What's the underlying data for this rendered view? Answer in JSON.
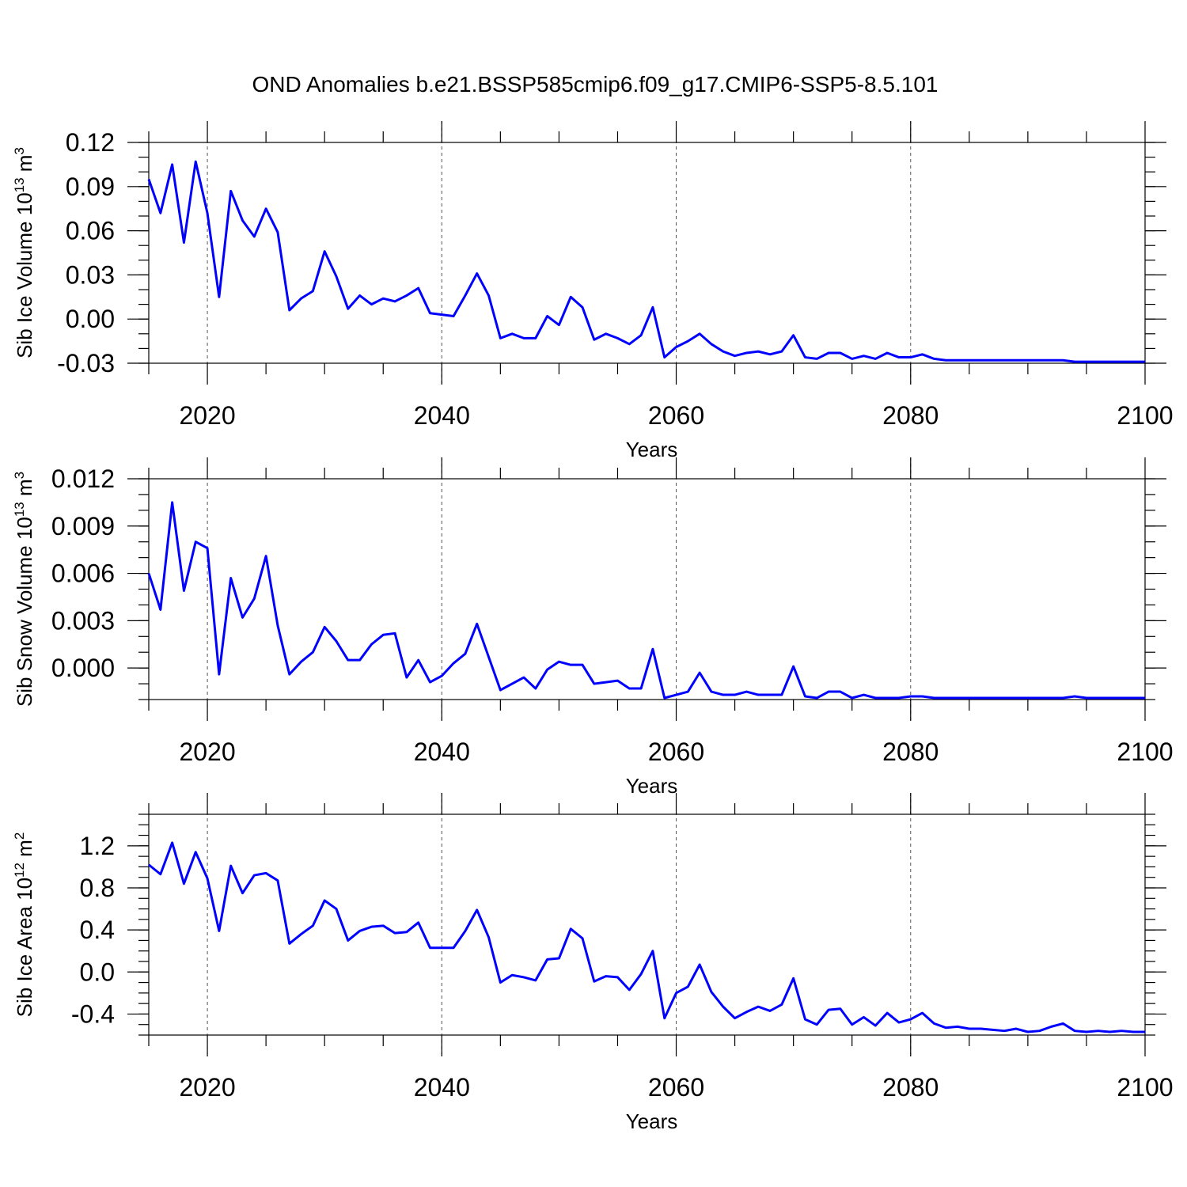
{
  "title": "OND Anomalies b.e21.BSSP585cmip6.f09_g17.CMIP6-SSP5-8.5.101",
  "chart_data": [
    {
      "type": "line",
      "ylabel": "Sib Ice Volume 10",
      "ylabel_exp": "13",
      "ylabel_unit": " m",
      "ylabel_unit_exp": "3",
      "xlabel": "Years",
      "xlim": [
        2015,
        2100
      ],
      "ylim": [
        -0.03,
        0.12
      ],
      "xticks": [
        2020,
        2040,
        2060,
        2080,
        2100
      ],
      "yticks": [
        -0.03,
        0.0,
        0.03,
        0.06,
        0.09,
        0.12
      ],
      "ytick_labels": [
        "-0.03",
        "0.00",
        "0.03",
        "0.06",
        "0.09",
        "0.12"
      ],
      "ytick_minor_step": 0.01,
      "grid_x": [
        2020,
        2040,
        2060,
        2080
      ],
      "color": "#0000ff",
      "x_start": 2015,
      "values": [
        0.095,
        0.072,
        0.105,
        0.052,
        0.107,
        0.072,
        0.015,
        0.087,
        0.067,
        0.056,
        0.075,
        0.059,
        0.006,
        0.014,
        0.019,
        0.046,
        0.029,
        0.007,
        0.016,
        0.01,
        0.014,
        0.012,
        0.016,
        0.021,
        0.004,
        0.003,
        0.002,
        0.016,
        0.031,
        0.016,
        -0.013,
        -0.01,
        -0.013,
        -0.013,
        0.002,
        -0.004,
        0.015,
        0.008,
        -0.014,
        -0.01,
        -0.013,
        -0.017,
        -0.011,
        0.008,
        -0.026,
        -0.019,
        -0.015,
        -0.01,
        -0.017,
        -0.022,
        -0.025,
        -0.023,
        -0.022,
        -0.024,
        -0.022,
        -0.011,
        -0.026,
        -0.027,
        -0.023,
        -0.023,
        -0.027,
        -0.025,
        -0.027,
        -0.023,
        -0.026,
        -0.026,
        -0.024,
        -0.027,
        -0.028,
        -0.028,
        -0.028,
        -0.028,
        -0.028,
        -0.028,
        -0.028,
        -0.028,
        -0.028,
        -0.028,
        -0.028,
        -0.029,
        -0.029,
        -0.029,
        -0.029,
        -0.029,
        -0.029,
        -0.029
      ]
    },
    {
      "type": "line",
      "ylabel": "Sib Snow Volume 10",
      "ylabel_exp": "13",
      "ylabel_unit": " m",
      "ylabel_unit_exp": "3",
      "xlabel": "Years",
      "xlim": [
        2015,
        2100
      ],
      "ylim": [
        -0.002,
        0.012
      ],
      "xticks": [
        2020,
        2040,
        2060,
        2080,
        2100
      ],
      "yticks": [
        0.0,
        0.003,
        0.006,
        0.009,
        0.012
      ],
      "ytick_labels": [
        "0.000",
        "0.003",
        "0.006",
        "0.009",
        "0.012"
      ],
      "ytick_minor_step": 0.001,
      "grid_x": [
        2020,
        2040,
        2060,
        2080
      ],
      "color": "#0000ff",
      "x_start": 2015,
      "values": [
        0.006,
        0.0037,
        0.0105,
        0.0049,
        0.008,
        0.0076,
        -0.0004,
        0.0057,
        0.0032,
        0.0044,
        0.0071,
        0.0027,
        -0.0004,
        0.0004,
        0.001,
        0.0026,
        0.0017,
        0.0005,
        0.0005,
        0.0015,
        0.0021,
        0.0022,
        -0.0006,
        0.0005,
        -0.0009,
        -0.0005,
        0.0003,
        0.0009,
        0.0028,
        0.0007,
        -0.0014,
        -0.001,
        -0.0006,
        -0.0013,
        -0.0001,
        0.0004,
        0.0002,
        0.0002,
        -0.001,
        -0.0009,
        -0.0008,
        -0.0013,
        -0.0013,
        0.0012,
        -0.0019,
        -0.0017,
        -0.0015,
        -0.0003,
        -0.0015,
        -0.0017,
        -0.0017,
        -0.0015,
        -0.0017,
        -0.0017,
        -0.0017,
        0.0001,
        -0.0018,
        -0.0019,
        -0.0015,
        -0.0015,
        -0.0019,
        -0.0017,
        -0.0019,
        -0.0019,
        -0.0019,
        -0.0018,
        -0.0018,
        -0.0019,
        -0.0019,
        -0.0019,
        -0.0019,
        -0.0019,
        -0.0019,
        -0.0019,
        -0.0019,
        -0.0019,
        -0.0019,
        -0.0019,
        -0.0019,
        -0.0018,
        -0.0019,
        -0.0019,
        -0.0019,
        -0.0019,
        -0.0019,
        -0.0019
      ]
    },
    {
      "type": "line",
      "ylabel": "Sib Ice Area 10",
      "ylabel_exp": "12",
      "ylabel_unit": " m",
      "ylabel_unit_exp": "2",
      "xlabel": "Years",
      "xlim": [
        2015,
        2100
      ],
      "ylim": [
        -0.6,
        1.5
      ],
      "xticks": [
        2020,
        2040,
        2060,
        2080,
        2100
      ],
      "yticks": [
        -0.4,
        0.0,
        0.4,
        0.8,
        1.2
      ],
      "ytick_labels": [
        "-0.4",
        "0.0",
        "0.4",
        "0.8",
        "1.2"
      ],
      "ytick_minor_step": 0.1,
      "grid_x": [
        2020,
        2040,
        2060,
        2080
      ],
      "color": "#0000ff",
      "x_start": 2015,
      "values": [
        1.02,
        0.93,
        1.23,
        0.84,
        1.14,
        0.89,
        0.39,
        1.01,
        0.75,
        0.92,
        0.94,
        0.87,
        0.27,
        0.36,
        0.44,
        0.68,
        0.6,
        0.3,
        0.39,
        0.43,
        0.44,
        0.37,
        0.38,
        0.47,
        0.23,
        0.23,
        0.23,
        0.39,
        0.59,
        0.33,
        -0.1,
        -0.03,
        -0.05,
        -0.08,
        0.12,
        0.13,
        0.41,
        0.32,
        -0.09,
        -0.04,
        -0.05,
        -0.17,
        -0.02,
        0.2,
        -0.44,
        -0.2,
        -0.14,
        0.07,
        -0.19,
        -0.33,
        -0.44,
        -0.38,
        -0.33,
        -0.37,
        -0.31,
        -0.06,
        -0.45,
        -0.5,
        -0.36,
        -0.35,
        -0.5,
        -0.43,
        -0.51,
        -0.39,
        -0.48,
        -0.45,
        -0.39,
        -0.49,
        -0.53,
        -0.52,
        -0.54,
        -0.54,
        -0.55,
        -0.56,
        -0.54,
        -0.57,
        -0.56,
        -0.52,
        -0.49,
        -0.56,
        -0.57,
        -0.56,
        -0.57,
        -0.56,
        -0.57,
        -0.57
      ]
    }
  ]
}
